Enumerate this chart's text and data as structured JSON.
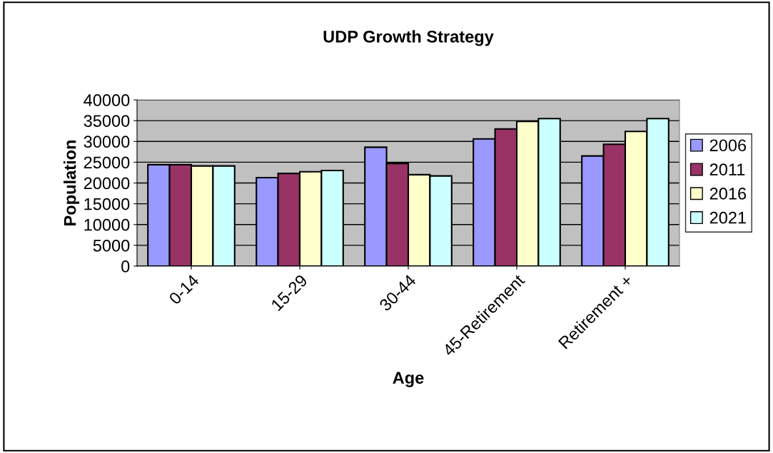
{
  "chart_data": {
    "type": "bar",
    "title": "UDP Growth Strategy",
    "xlabel": "Age",
    "ylabel": "Population",
    "categories": [
      "0-14",
      "15-29",
      "30-44",
      "45-Retirement",
      "Retirement +"
    ],
    "series": [
      {
        "name": "2006",
        "color": "#9999ff",
        "values": [
          24400,
          21300,
          28600,
          30600,
          26500
        ]
      },
      {
        "name": "2011",
        "color": "#993366",
        "values": [
          24400,
          22300,
          24700,
          33000,
          29300
        ]
      },
      {
        "name": "2016",
        "color": "#ffffcc",
        "values": [
          24100,
          22700,
          22000,
          34800,
          32400
        ]
      },
      {
        "name": "2021",
        "color": "#ccffff",
        "values": [
          24100,
          23000,
          21700,
          35500,
          35500
        ]
      }
    ],
    "ylim": [
      0,
      40000
    ],
    "yticks": [
      0,
      5000,
      10000,
      15000,
      20000,
      25000,
      30000,
      35000,
      40000
    ],
    "grid": "y",
    "legend": "right"
  }
}
